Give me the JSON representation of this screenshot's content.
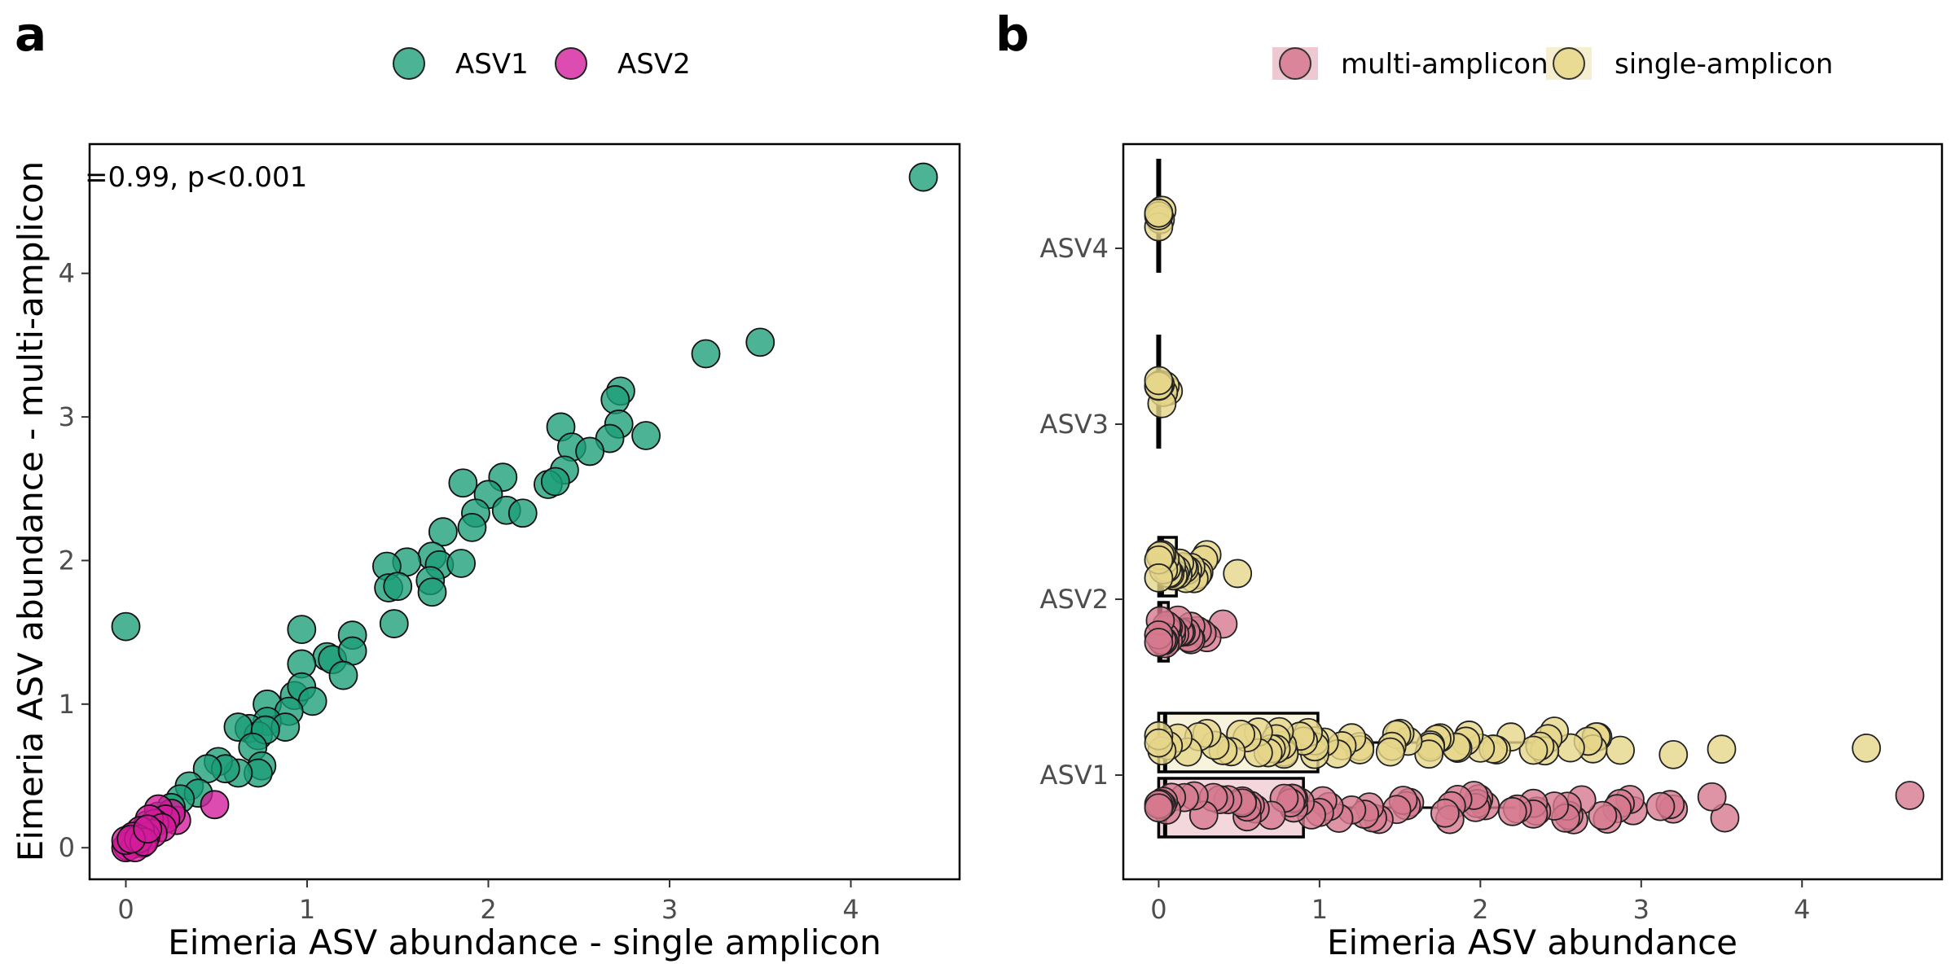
{
  "chart_data": [
    {
      "panel_label": "a",
      "type": "scatter",
      "xlabel": "Eimeria ASV abundance - single amplicon",
      "ylabel": "Eimeria ASV abundance - multi-amplicon",
      "xlim": [
        -0.2,
        4.6
      ],
      "ylim": [
        -0.22,
        4.9
      ],
      "xticks": [
        0,
        1,
        2,
        3,
        4
      ],
      "yticks": [
        0,
        1,
        2,
        3,
        4
      ],
      "grid": false,
      "legend_position": "top",
      "annotation": "=0.99, p<0.001",
      "series": [
        {
          "name": "ASV1",
          "color": "#1b9e77",
          "points": [
            [
              0.0,
              1.54
            ],
            [
              4.4,
              4.67
            ],
            [
              3.5,
              3.52
            ],
            [
              3.2,
              3.44
            ],
            [
              2.73,
              3.18
            ],
            [
              2.7,
              3.12
            ],
            [
              2.72,
              2.95
            ],
            [
              2.87,
              2.87
            ],
            [
              2.67,
              2.85
            ],
            [
              2.4,
              2.93
            ],
            [
              2.46,
              2.79
            ],
            [
              2.56,
              2.76
            ],
            [
              2.42,
              2.63
            ],
            [
              2.33,
              2.53
            ],
            [
              2.37,
              2.55
            ],
            [
              1.86,
              2.54
            ],
            [
              2.08,
              2.58
            ],
            [
              2.0,
              2.46
            ],
            [
              2.1,
              2.35
            ],
            [
              2.19,
              2.33
            ],
            [
              1.93,
              2.33
            ],
            [
              1.75,
              2.2
            ],
            [
              1.91,
              2.23
            ],
            [
              1.69,
              2.03
            ],
            [
              1.73,
              1.97
            ],
            [
              1.85,
              1.98
            ],
            [
              1.55,
              1.99
            ],
            [
              1.44,
              1.96
            ],
            [
              1.68,
              1.86
            ],
            [
              1.45,
              1.81
            ],
            [
              1.5,
              1.82
            ],
            [
              1.69,
              1.78
            ],
            [
              1.48,
              1.56
            ],
            [
              0.97,
              1.52
            ],
            [
              1.25,
              1.48
            ],
            [
              1.11,
              1.33
            ],
            [
              1.14,
              1.31
            ],
            [
              1.25,
              1.37
            ],
            [
              0.97,
              1.28
            ],
            [
              1.2,
              1.2
            ],
            [
              0.93,
              1.06
            ],
            [
              0.97,
              1.12
            ],
            [
              1.03,
              1.02
            ],
            [
              0.78,
              1.0
            ],
            [
              0.9,
              0.95
            ],
            [
              0.78,
              0.88
            ],
            [
              0.68,
              0.83
            ],
            [
              0.73,
              0.78
            ],
            [
              0.62,
              0.84
            ],
            [
              0.88,
              0.84
            ],
            [
              0.77,
              0.82
            ],
            [
              0.7,
              0.7
            ],
            [
              0.75,
              0.57
            ],
            [
              0.73,
              0.52
            ],
            [
              0.62,
              0.52
            ],
            [
              0.51,
              0.6
            ],
            [
              0.55,
              0.55
            ],
            [
              0.45,
              0.55
            ],
            [
              0.35,
              0.43
            ],
            [
              0.4,
              0.38
            ],
            [
              0.3,
              0.34
            ],
            [
              0.25,
              0.28
            ],
            [
              0.18,
              0.22
            ],
            [
              0.12,
              0.16
            ],
            [
              0.06,
              0.08
            ],
            [
              0.02,
              0.03
            ]
          ]
        },
        {
          "name": "ASV2",
          "color": "#d41b9b",
          "points": [
            [
              0.49,
              0.3
            ],
            [
              0.28,
              0.19
            ],
            [
              0.25,
              0.24
            ],
            [
              0.18,
              0.27
            ],
            [
              0.22,
              0.2
            ],
            [
              0.16,
              0.17
            ],
            [
              0.13,
              0.2
            ],
            [
              0.2,
              0.14
            ],
            [
              0.15,
              0.1
            ],
            [
              0.11,
              0.08
            ],
            [
              0.08,
              0.12
            ],
            [
              0.06,
              0.05
            ],
            [
              0.09,
              0.03
            ],
            [
              0.04,
              0.08
            ],
            [
              0.03,
              0.02
            ],
            [
              0.02,
              0.04
            ],
            [
              0.01,
              0.01
            ],
            [
              0.0,
              0.0
            ],
            [
              0.05,
              0.0
            ],
            [
              0.0,
              0.05
            ],
            [
              0.07,
              0.06
            ],
            [
              0.1,
              0.04
            ],
            [
              0.03,
              0.06
            ],
            [
              0.12,
              0.13
            ]
          ]
        }
      ]
    },
    {
      "panel_label": "b",
      "type": "boxplot",
      "xlabel": "Eimeria ASV abundance",
      "ylabel": "",
      "xlim": [
        -0.22,
        4.87
      ],
      "xticks": [
        0,
        1,
        2,
        3,
        4
      ],
      "categories": [
        "ASV1",
        "ASV2",
        "ASV3",
        "ASV4"
      ],
      "grid": false,
      "legend_position": "top",
      "series": [
        {
          "name": "multi-amplicon",
          "color": "#d6798f",
          "boxes": {
            "ASV1": {
              "min": 0.0,
              "q1": 0.0,
              "median": 0.04,
              "q3": 0.9,
              "max": 2.22
            },
            "ASV2": {
              "min": 0.0,
              "q1": 0.0,
              "median": 0.01,
              "q3": 0.06,
              "max": 0.12
            }
          },
          "points": {
            "ASV1": [
              4.67,
              3.52,
              3.44,
              3.2,
              3.18,
              3.12,
              2.95,
              2.93,
              2.87,
              2.85,
              2.79,
              2.76,
              2.63,
              2.58,
              2.55,
              2.54,
              2.53,
              2.46,
              2.35,
              2.33,
              2.33,
              2.23,
              2.2,
              2.03,
              1.99,
              1.98,
              1.97,
              1.96,
              1.86,
              1.82,
              1.81,
              1.78,
              1.56,
              1.54,
              1.52,
              1.48,
              1.37,
              1.33,
              1.31,
              1.28,
              1.2,
              1.12,
              1.06,
              1.02,
              1.0,
              0.95,
              0.88,
              0.84,
              0.84,
              0.83,
              0.82,
              0.78,
              0.7,
              0.6,
              0.57,
              0.55,
              0.55,
              0.52,
              0.52,
              0.43,
              0.38,
              0.34,
              0.28,
              0.22,
              0.16,
              0.08,
              0.05,
              0.03,
              0.02,
              0.01,
              0.0,
              0.0
            ],
            "ASV2": [
              0.4,
              0.3,
              0.27,
              0.24,
              0.2,
              0.2,
              0.19,
              0.17,
              0.14,
              0.13,
              0.12,
              0.1,
              0.08,
              0.08,
              0.06,
              0.06,
              0.05,
              0.05,
              0.04,
              0.04,
              0.03,
              0.02,
              0.01,
              0.0,
              0.0
            ]
          }
        },
        {
          "name": "single-amplicon",
          "color": "#e6d68a",
          "boxes": {
            "ASV1": {
              "min": 0.0,
              "q1": 0.0,
              "median": 0.04,
              "q3": 0.99,
              "max": 2.38
            },
            "ASV2": {
              "min": 0.0,
              "q1": 0.0,
              "median": 0.02,
              "q3": 0.11,
              "max": 0.3
            },
            "ASV3": {
              "min": 0.0,
              "q1": 0.0,
              "median": 0.0,
              "q3": 0.0,
              "max": 0.0
            },
            "ASV4": {
              "min": 0.0,
              "q1": 0.0,
              "median": 0.0,
              "q3": 0.0,
              "max": 0.0
            }
          },
          "points": {
            "ASV1": [
              4.4,
              3.5,
              3.2,
              2.87,
              2.73,
              2.72,
              2.7,
              2.67,
              2.56,
              2.46,
              2.42,
              2.4,
              2.37,
              2.33,
              2.19,
              2.1,
              2.08,
              2.0,
              1.93,
              1.91,
              1.86,
              1.85,
              1.75,
              1.73,
              1.69,
              1.69,
              1.68,
              1.55,
              1.5,
              1.48,
              1.45,
              1.44,
              1.25,
              1.25,
              1.2,
              1.14,
              1.11,
              1.03,
              0.97,
              0.97,
              0.97,
              0.93,
              0.9,
              0.88,
              0.78,
              0.78,
              0.77,
              0.75,
              0.73,
              0.73,
              0.7,
              0.68,
              0.62,
              0.62,
              0.55,
              0.51,
              0.45,
              0.4,
              0.35,
              0.3,
              0.25,
              0.18,
              0.12,
              0.06,
              0.02,
              0.0,
              0.0
            ],
            "ASV2": [
              0.49,
              0.3,
              0.28,
              0.25,
              0.24,
              0.22,
              0.2,
              0.18,
              0.17,
              0.16,
              0.15,
              0.13,
              0.12,
              0.11,
              0.1,
              0.09,
              0.08,
              0.07,
              0.06,
              0.05,
              0.04,
              0.03,
              0.02,
              0.01,
              0.0,
              0.0
            ],
            "ASV3": [
              0.06,
              0.04,
              0.03,
              0.02,
              0.01,
              0.0,
              0.0,
              0.0
            ],
            "ASV4": [
              0.02,
              0.01,
              0.0,
              0.0,
              0.0
            ]
          }
        }
      ]
    }
  ]
}
